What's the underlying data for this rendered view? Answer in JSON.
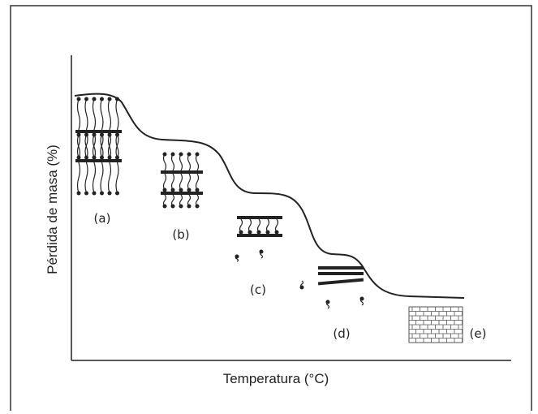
{
  "axes": {
    "y_label": "Pérdida de masa (%)",
    "x_label": "Temperatura (°C)"
  },
  "stages": [
    {
      "label": "(a)"
    },
    {
      "label": "(b)"
    },
    {
      "label": "(c)"
    },
    {
      "label": "(d)"
    },
    {
      "label": "(e)"
    }
  ]
}
